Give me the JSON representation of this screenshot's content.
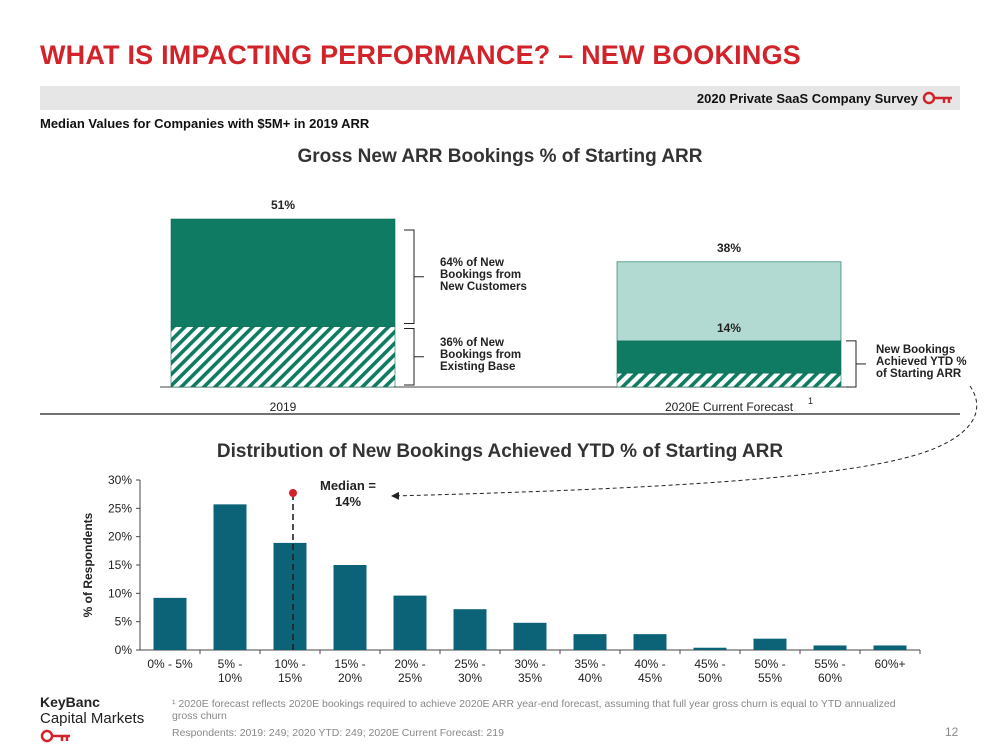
{
  "header": {
    "title": "WHAT IS IMPACTING PERFORMANCE? – NEW BOOKINGS",
    "banner": "2020 Private SaaS Company Survey",
    "subtitle": "Median Values for Companies with $5M+ in 2019 ARR"
  },
  "colors": {
    "brand_red": "#d2232a",
    "dark_green": "#0f7b62",
    "light_teal": "#b3d9d3",
    "bar_blue": "#0c6378"
  },
  "chart_data": [
    {
      "type": "bar",
      "title": "Gross New ARR Bookings % of Starting ARR",
      "categories": [
        "2019",
        "2020E Current Forecast"
      ],
      "category_note": "1",
      "stacked": true,
      "totals": [
        "51%",
        "38%"
      ],
      "segment_labels": [
        "",
        "14%"
      ],
      "series": [
        {
          "name": "",
          "values": [
            18.36,
            4.2
          ]
        },
        {
          "name": "",
          "values": [
            32.64,
            9.8
          ]
        },
        {
          "name": "",
          "values": [
            0,
            24
          ]
        }
      ],
      "ylim": [
        0,
        51
      ],
      "annotations": [
        {
          "lines": [
            "64% of New",
            "Bookings from",
            "New Customers"
          ]
        },
        {
          "lines": [
            "36% of New",
            "Bookings from",
            "Existing Base"
          ]
        },
        {
          "lines": [
            "New Bookings",
            "Achieved YTD %",
            "of Starting ARR"
          ]
        }
      ]
    },
    {
      "type": "bar",
      "title": "Distribution of New Bookings Achieved YTD % of Starting ARR",
      "ylabel": "% of Respondents",
      "categories": [
        [
          "0% - 5%"
        ],
        [
          "5% -",
          "10%"
        ],
        [
          "10% -",
          "15%"
        ],
        [
          "15% -",
          "20%"
        ],
        [
          "20% -",
          "25%"
        ],
        [
          "25% -",
          "30%"
        ],
        [
          "30% -",
          "35%"
        ],
        [
          "35% -",
          "40%"
        ],
        [
          "40% -",
          "45%"
        ],
        [
          "45% -",
          "50%"
        ],
        [
          "50% -",
          "55%"
        ],
        [
          "55% -",
          "60%"
        ],
        [
          "60%+"
        ]
      ],
      "values": [
        9.2,
        25.7,
        18.9,
        15.0,
        9.6,
        7.2,
        4.8,
        2.8,
        2.8,
        0.4,
        2.0,
        0.8,
        0.8
      ],
      "ylim": [
        0,
        30
      ],
      "yticks": [
        "0%",
        "5%",
        "10%",
        "15%",
        "20%",
        "25%",
        "30%"
      ],
      "median_label": [
        "Median =",
        "14%"
      ],
      "median_value": 14
    }
  ],
  "footnotes": {
    "note1": "¹ 2020E forecast reflects 2020E bookings required to achieve 2020E ARR year-end forecast, assuming that full year gross churn is equal to YTD annualized gross churn",
    "respondents": "Respondents: 2019: 249; 2020 YTD: 249; 2020E Current Forecast: 219"
  },
  "logo": {
    "line1": "KeyBanc",
    "line2": "Capital Markets",
    "key_icon": "key-icon"
  },
  "page_number": "12"
}
